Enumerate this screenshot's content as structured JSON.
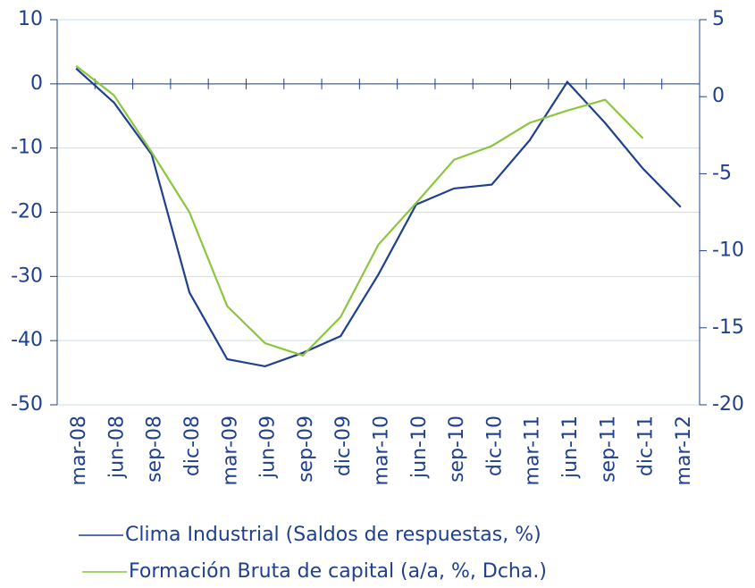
{
  "chart_data": {
    "type": "line",
    "categories": [
      "mar-08",
      "jun-08",
      "sep-08",
      "dic-08",
      "mar-09",
      "jun-09",
      "sep-09",
      "dic-09",
      "mar-10",
      "jun-10",
      "sep-10",
      "dic-10",
      "mar-11",
      "jun-11",
      "sep-11",
      "dic-11",
      "mar-12"
    ],
    "series": [
      {
        "name": "Clima Industrial (Saldos de respuestas, %)",
        "color": "#1f3f8f",
        "values": [
          2.4,
          -2.9,
          -11,
          -32.5,
          -42.9,
          -44,
          -41.9,
          -39.3,
          -29.7,
          -18.8,
          -16.3,
          -15.7,
          -8.8,
          0.3,
          -6.1,
          -13.2,
          -19.2
        ]
      },
      {
        "name": "Formación Bruta de capital (a/a, %, Dcha.)",
        "color": "#8cc63f",
        "axis": "y2",
        "values": [
          2.0,
          0.1,
          -3.6,
          -7.5,
          -13.6,
          -16.0,
          -16.8,
          -14.3,
          -9.6,
          -6.9,
          -4.1,
          -3.2,
          -1.7,
          -0.9,
          -0.2,
          -2.7,
          null
        ]
      }
    ],
    "ylim": [
      -50,
      10
    ],
    "yticks": [
      10,
      0,
      -10,
      -20,
      -30,
      -40,
      -50
    ],
    "y2lim": [
      -20,
      5
    ],
    "y2ticks": [
      5,
      0,
      -5,
      -10,
      -15,
      -20
    ],
    "grid": true
  }
}
